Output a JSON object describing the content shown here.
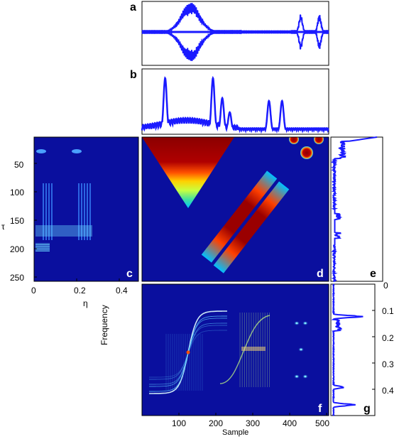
{
  "chart_data": [
    {
      "panel": "a",
      "type": "line",
      "x_range": [
        0,
        500
      ],
      "color": "#1a1aff",
      "bursts": [
        {
          "center": 130,
          "width": 55,
          "amplitude": 1.0
        },
        {
          "center": 425,
          "width": 10,
          "amplitude": 0.6
        },
        {
          "center": 475,
          "width": 10,
          "amplitude": 0.6
        }
      ]
    },
    {
      "panel": "b",
      "type": "line",
      "x_range": [
        0,
        500
      ],
      "color": "#1a1aff",
      "peaks": [
        {
          "x": 62,
          "height": 0.95
        },
        {
          "x": 60,
          "height": 0.4
        },
        {
          "x": 190,
          "height": 0.95
        },
        {
          "x": 215,
          "height": 0.6
        },
        {
          "x": 235,
          "height": 0.35
        },
        {
          "x": 340,
          "height": 0.55
        },
        {
          "x": 375,
          "height": 0.55
        }
      ]
    },
    {
      "panel": "c",
      "type": "heatmap",
      "x_ticks": [
        "0",
        "0.2",
        "0.4"
      ],
      "y_ticks": [
        "50",
        "100",
        "150",
        "200",
        "250"
      ],
      "xlabel": "η",
      "ylabel": "τ"
    },
    {
      "panel": "d",
      "type": "heatmap",
      "features": [
        "triangle",
        "two-diagonal-bands",
        "two-circles"
      ]
    },
    {
      "panel": "e",
      "type": "line",
      "orientation": "vertical",
      "color": "#1a1aff"
    },
    {
      "panel": "f",
      "type": "heatmap",
      "x_ticks": [
        "100",
        "200",
        "300",
        "400",
        "500"
      ],
      "xlabel": "Sample",
      "ylabel": "Frequency"
    },
    {
      "panel": "g",
      "type": "line",
      "orientation": "vertical",
      "y_ticks": [
        "0",
        "0.1",
        "0.2",
        "0.3",
        "0.4"
      ],
      "color": "#1a1aff",
      "peaks": [
        {
          "freq": 0.11,
          "height": 1.0
        },
        {
          "freq": 0.15,
          "height": 0.3
        },
        {
          "freq": 0.35,
          "height": 0.4
        },
        {
          "freq": 0.41,
          "height": 0.75
        }
      ]
    }
  ],
  "panel_letters": {
    "a": "a",
    "b": "b",
    "c": "c",
    "d": "d",
    "e": "e",
    "f": "f",
    "g": "g"
  },
  "colors": {
    "heatmap_bg": "#0a0f9e",
    "heatmap_hot": "#8b0000",
    "line": "#1a1aff"
  }
}
